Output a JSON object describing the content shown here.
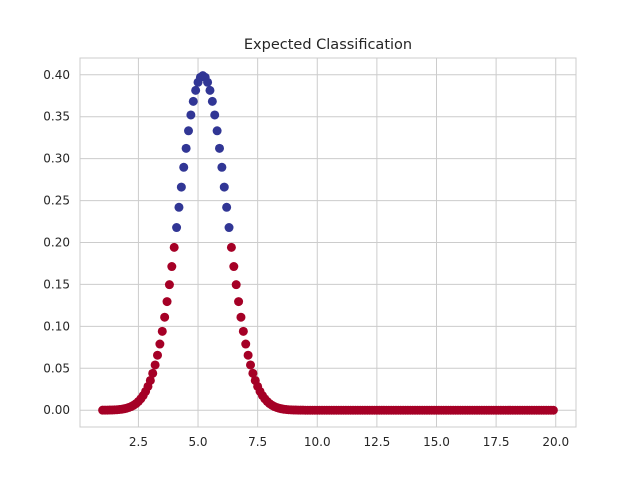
{
  "chart_data": {
    "type": "scatter",
    "title": "Expected Classification",
    "xlabel": "",
    "ylabel": "",
    "xlim": [
      0.05,
      20.85
    ],
    "ylim": [
      -0.02,
      0.42
    ],
    "xticks": [
      2.5,
      5.0,
      7.5,
      10.0,
      12.5,
      15.0,
      17.5,
      20.0
    ],
    "xtick_labels": [
      "2.5",
      "5.0",
      "7.5",
      "10.0",
      "12.5",
      "15.0",
      "17.5",
      "20.0"
    ],
    "yticks": [
      0.0,
      0.05,
      0.1,
      0.15,
      0.2,
      0.25,
      0.3,
      0.35,
      0.4
    ],
    "ytick_labels": [
      "0.00",
      "0.05",
      "0.10",
      "0.15",
      "0.20",
      "0.25",
      "0.30",
      "0.35",
      "0.40"
    ],
    "grid": true,
    "x_start": 1.0,
    "x_end": 19.9,
    "x_step": 0.1,
    "curve_mean": 5.2,
    "curve_sd": 1.0,
    "threshold": 0.2,
    "colors": {
      "above_threshold": "#313695",
      "below_threshold": "#a50026",
      "grid": "#cccccc",
      "spine": "#cccccc",
      "text": "#262626"
    }
  }
}
